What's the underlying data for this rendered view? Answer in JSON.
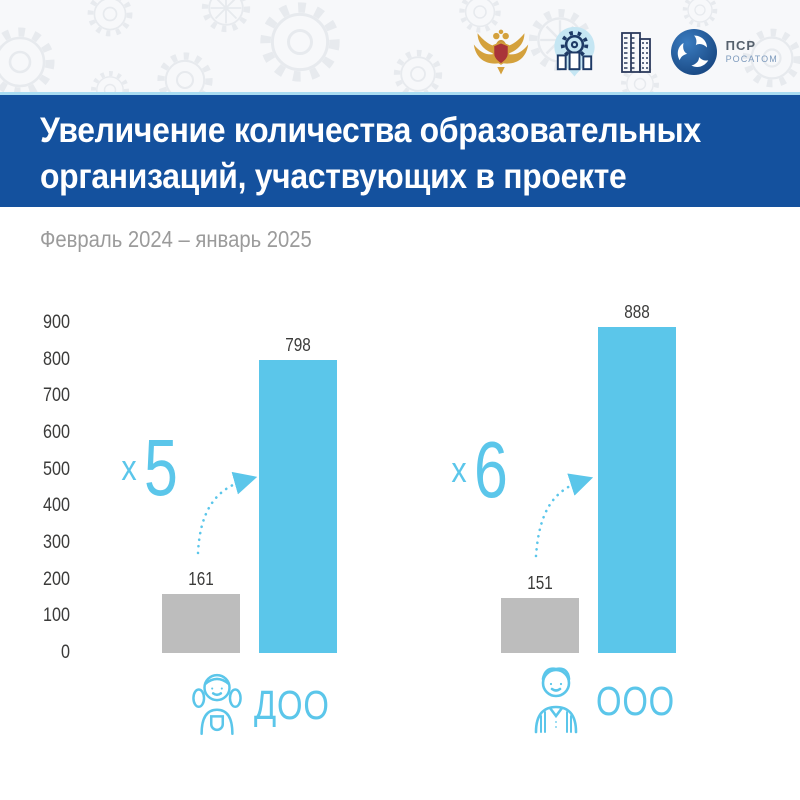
{
  "header": {
    "logos": [
      {
        "name": "ministry-coat-of-arms"
      },
      {
        "name": "project-pin-emblem"
      },
      {
        "name": "building-logo"
      },
      {
        "name": "rosatom-logo",
        "text_top": "ПСР",
        "text_bottom": "РОСАТОМ"
      }
    ]
  },
  "title": {
    "line1": "Увеличение количества образовательных",
    "line2": "организаций, участвующих в проекте"
  },
  "subtitle": "Февраль 2024 – январь 2025",
  "colors": {
    "accent_blue": "#5BC6EA",
    "bar_gray": "#BDBDBD",
    "banner_blue": "#14519E",
    "text_dark": "#3B3B3A",
    "subtitle_gray": "#9B9B9B",
    "header_separator": "#A9DCF2"
  },
  "chart_data": {
    "type": "bar",
    "title": "Увеличение количества образовательных организаций, участвующих в проекте",
    "period": "Февраль 2024 – январь 2025",
    "ylim": [
      0,
      900
    ],
    "y_ticks": [
      900,
      800,
      700,
      600,
      500,
      400,
      300,
      200,
      100,
      0
    ],
    "grid": false,
    "legend": "none",
    "categories": [
      "ДОО",
      "ООО"
    ],
    "series": [
      {
        "name": "Февраль 2024",
        "color": "#BDBDBD",
        "values": [
          161,
          151
        ]
      },
      {
        "name": "Январь 2025",
        "color": "#5BC6EA",
        "values": [
          798,
          888
        ]
      }
    ],
    "groups": [
      {
        "label": "ДОО",
        "icon": "girl-icon",
        "before": 161,
        "after": 798,
        "multiplier_x": "x",
        "multiplier_value": "5"
      },
      {
        "label": "ООО",
        "icon": "boy-icon",
        "before": 151,
        "after": 888,
        "multiplier_x": "x",
        "multiplier_value": "6"
      }
    ]
  }
}
